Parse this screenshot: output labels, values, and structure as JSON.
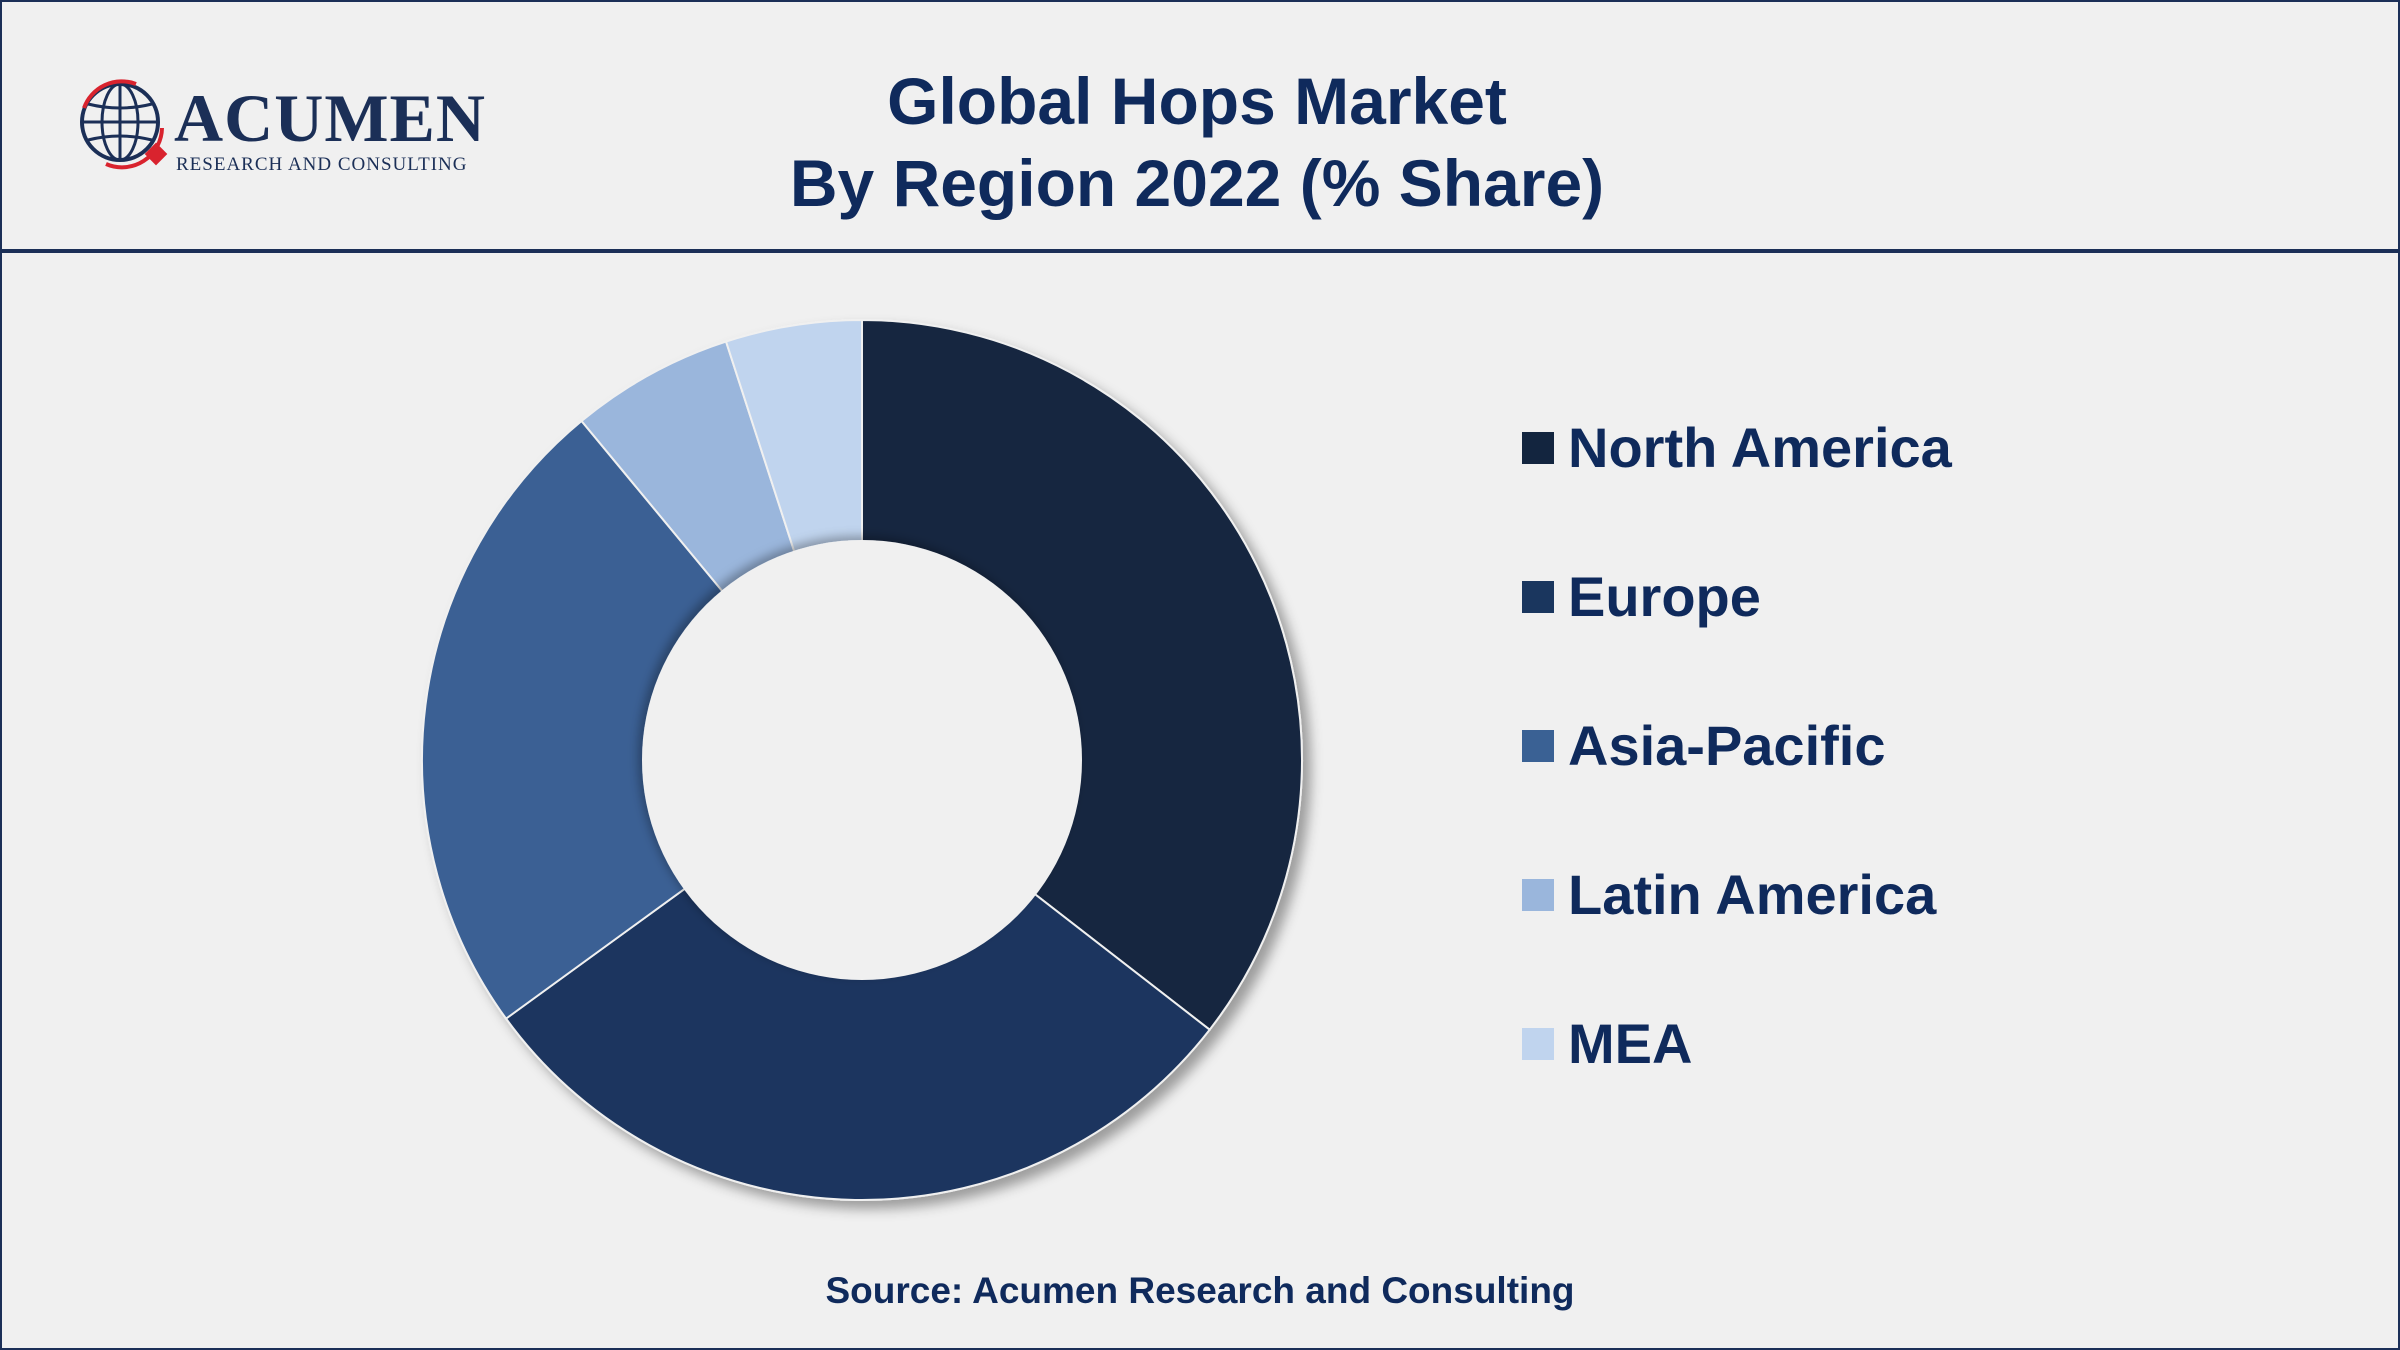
{
  "brand": {
    "name": "ACUMEN",
    "tagline": "RESEARCH AND CONSULTING",
    "color": "#1b2f57",
    "accent": "#d9232e",
    "icon": "globe-icon"
  },
  "title_lines": [
    "Global Hops Market",
    "By Region 2022 (% Share)"
  ],
  "source": "Source: Acumen Research and Consulting",
  "chart_data": {
    "type": "pie",
    "donut": true,
    "title": "Global Hops Market By Region 2022 (% Share)",
    "legend_position": "right",
    "categories": [
      "North America",
      "Europe",
      "Asia-Pacific",
      "Latin America",
      "MEA"
    ],
    "values": [
      35.5,
      29.5,
      24.0,
      6.0,
      5.0
    ],
    "colors": [
      "#13253f",
      "#1a365e",
      "#3a6194",
      "#9ab6dc",
      "#c0d4ee"
    ]
  }
}
